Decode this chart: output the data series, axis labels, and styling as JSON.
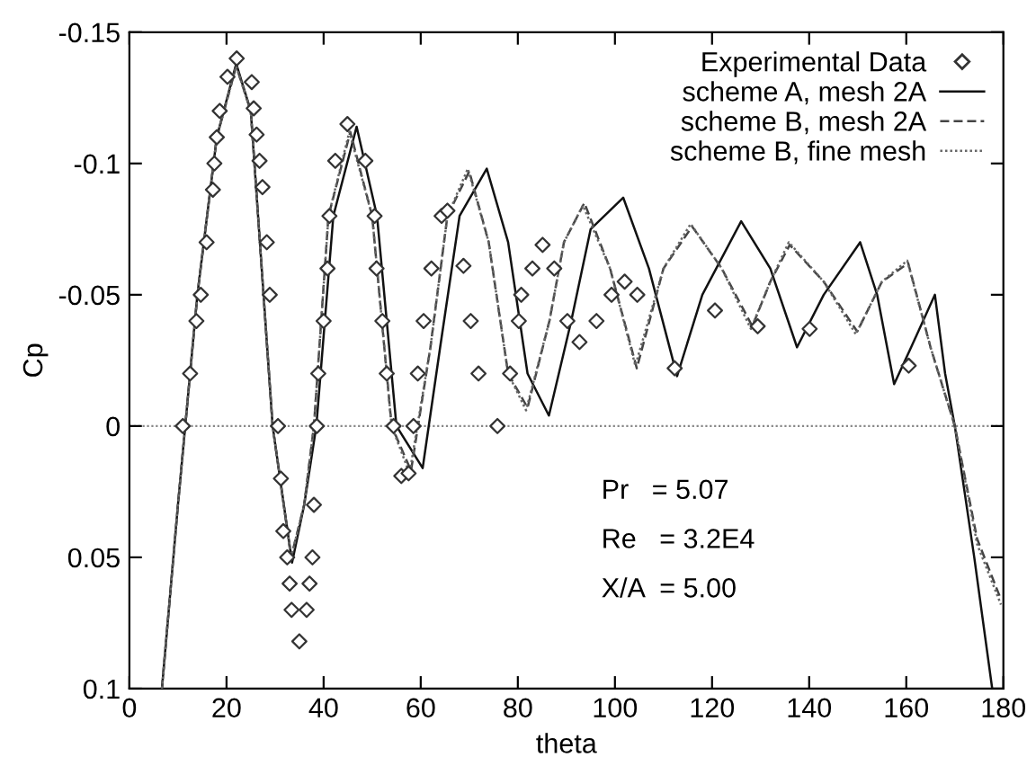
{
  "chart_data": {
    "type": "line",
    "xlabel": "theta",
    "ylabel": "Cp",
    "xlim": [
      0,
      180
    ],
    "xticks": [
      0,
      20,
      40,
      60,
      80,
      100,
      120,
      140,
      160,
      180
    ],
    "ylim": [
      0.1,
      -0.15
    ],
    "yticks": [
      -0.15,
      -0.1,
      -0.05,
      0,
      0.05,
      0.1
    ],
    "grid": false,
    "legend": "top right",
    "ref_lines": [
      {
        "axis": "y",
        "value": 0,
        "color": "#888888",
        "line_style": "dotted"
      }
    ],
    "annotations": [
      "Pr   = 5.07",
      "Re   = 3.2E4",
      "X/A  = 5.00"
    ],
    "series": [
      {
        "name": "Experimental Data",
        "type": "scatter",
        "marker": "diamond",
        "color": "#333333",
        "x": [
          11.0,
          12.5,
          13.8,
          14.7,
          15.9,
          17.2,
          17.5,
          18.0,
          18.6,
          20.2,
          22.1,
          25.2,
          25.6,
          26.2,
          26.8,
          27.4,
          28.3,
          28.9,
          30.6,
          31.2,
          31.7,
          32.5,
          33.0,
          33.4,
          35.0,
          36.5,
          37.1,
          37.7,
          38.0,
          38.6,
          38.9,
          40.0,
          40.8,
          41.2,
          42.4,
          44.9,
          48.6,
          50.5,
          50.9,
          52.1,
          53.0,
          54.4,
          56.0,
          57.5,
          58.5,
          59.4,
          60.6,
          62.2,
          64.3,
          65.5,
          68.8,
          70.3,
          71.9,
          75.8,
          78.4,
          80.2,
          80.7,
          83.0,
          85.1,
          87.5,
          90.2,
          92.7,
          96.2,
          99.3,
          102.0,
          104.6,
          112.3,
          120.6,
          129.4,
          140.1,
          160.5
        ],
        "values": [
          0,
          -0.02,
          -0.04,
          -0.05,
          -0.07,
          -0.09,
          -0.1,
          -0.11,
          -0.12,
          -0.133,
          -0.14,
          -0.131,
          -0.121,
          -0.111,
          -0.101,
          -0.091,
          -0.07,
          -0.05,
          0,
          0.02,
          0.04,
          0.05,
          0.06,
          0.07,
          0.082,
          0.07,
          0.06,
          0.05,
          0.03,
          0,
          -0.02,
          -0.04,
          -0.06,
          -0.08,
          -0.101,
          -0.115,
          -0.101,
          -0.08,
          -0.06,
          -0.04,
          -0.02,
          0,
          0.019,
          0.018,
          0,
          -0.02,
          -0.04,
          -0.06,
          -0.08,
          -0.082,
          -0.061,
          -0.04,
          -0.02,
          0,
          -0.02,
          -0.04,
          -0.05,
          -0.06,
          -0.069,
          -0.06,
          -0.04,
          -0.032,
          -0.04,
          -0.05,
          -0.055,
          -0.05,
          -0.022,
          -0.044,
          -0.038,
          -0.037,
          -0.023
        ]
      },
      {
        "name": "scheme A, mesh 2A",
        "line_style": "solid",
        "color": "#111111",
        "x": [
          6.7,
          10,
          14,
          18,
          22,
          25,
          29.5,
          33.5,
          36,
          38.5,
          42,
          46.8,
          51,
          55,
          60.4,
          64,
          68,
          73.6,
          78,
          82,
          86.4,
          91,
          95,
          101.7,
          107,
          112.8,
          118,
          126,
          132,
          137.5,
          143,
          150.5,
          154,
          157.5,
          161,
          165.9,
          168,
          170,
          174,
          177.7
        ],
        "values": [
          0.1,
          0.03,
          -0.05,
          -0.11,
          -0.138,
          -0.12,
          0,
          0.052,
          0.03,
          0,
          -0.08,
          -0.114,
          -0.08,
          0,
          0.016,
          -0.03,
          -0.08,
          -0.098,
          -0.07,
          -0.02,
          -0.004,
          -0.04,
          -0.075,
          -0.087,
          -0.06,
          -0.019,
          -0.05,
          -0.078,
          -0.06,
          -0.03,
          -0.05,
          -0.07,
          -0.05,
          -0.016,
          -0.03,
          -0.05,
          -0.02,
          0,
          0.05,
          0.1
        ]
      },
      {
        "name": "scheme B, mesh 2A",
        "line_style": "dashed",
        "color": "#444444",
        "x": [
          6.7,
          10,
          14,
          18,
          22,
          25,
          29.5,
          33.3,
          36,
          38,
          41,
          45.5,
          50,
          54,
          58,
          62,
          65.5,
          70,
          74,
          78,
          82,
          86.5,
          89.5,
          93.7,
          99,
          104.5,
          110,
          115.9,
          122,
          128.3,
          132,
          136,
          143,
          149.9,
          155,
          160.4,
          165,
          170,
          174.6,
          179.5
        ],
        "values": [
          0.1,
          0.03,
          -0.05,
          -0.11,
          -0.137,
          -0.12,
          0,
          0.05,
          0.03,
          0,
          -0.08,
          -0.112,
          -0.08,
          0,
          0.017,
          -0.03,
          -0.08,
          -0.097,
          -0.07,
          -0.02,
          -0.007,
          -0.04,
          -0.07,
          -0.085,
          -0.06,
          -0.022,
          -0.06,
          -0.076,
          -0.06,
          -0.038,
          -0.055,
          -0.069,
          -0.055,
          -0.036,
          -0.055,
          -0.062,
          -0.03,
          0,
          0.043,
          0.066
        ]
      },
      {
        "name": "scheme B, fine mesh",
        "line_style": "dotted",
        "color": "#666666",
        "x": [
          6.7,
          10,
          14,
          18,
          22,
          25,
          29.5,
          33.3,
          36,
          38,
          41,
          45.3,
          50,
          54,
          57.7,
          62,
          65.5,
          69.7,
          74,
          78,
          81.7,
          86.5,
          89.5,
          93.4,
          99,
          104.2,
          110,
          115.6,
          122,
          128,
          132,
          135.8,
          143,
          149.6,
          155,
          160.2,
          165,
          170,
          174.6,
          179.5
        ],
        "values": [
          0.1,
          0.03,
          -0.05,
          -0.11,
          -0.137,
          -0.12,
          0,
          0.05,
          0.03,
          0,
          -0.08,
          -0.112,
          -0.08,
          0,
          0.018,
          -0.03,
          -0.08,
          -0.098,
          -0.07,
          -0.02,
          -0.006,
          -0.04,
          -0.07,
          -0.084,
          -0.06,
          -0.023,
          -0.06,
          -0.077,
          -0.06,
          -0.037,
          -0.055,
          -0.07,
          -0.055,
          -0.035,
          -0.055,
          -0.063,
          -0.03,
          0,
          0.045,
          0.068
        ]
      }
    ]
  }
}
